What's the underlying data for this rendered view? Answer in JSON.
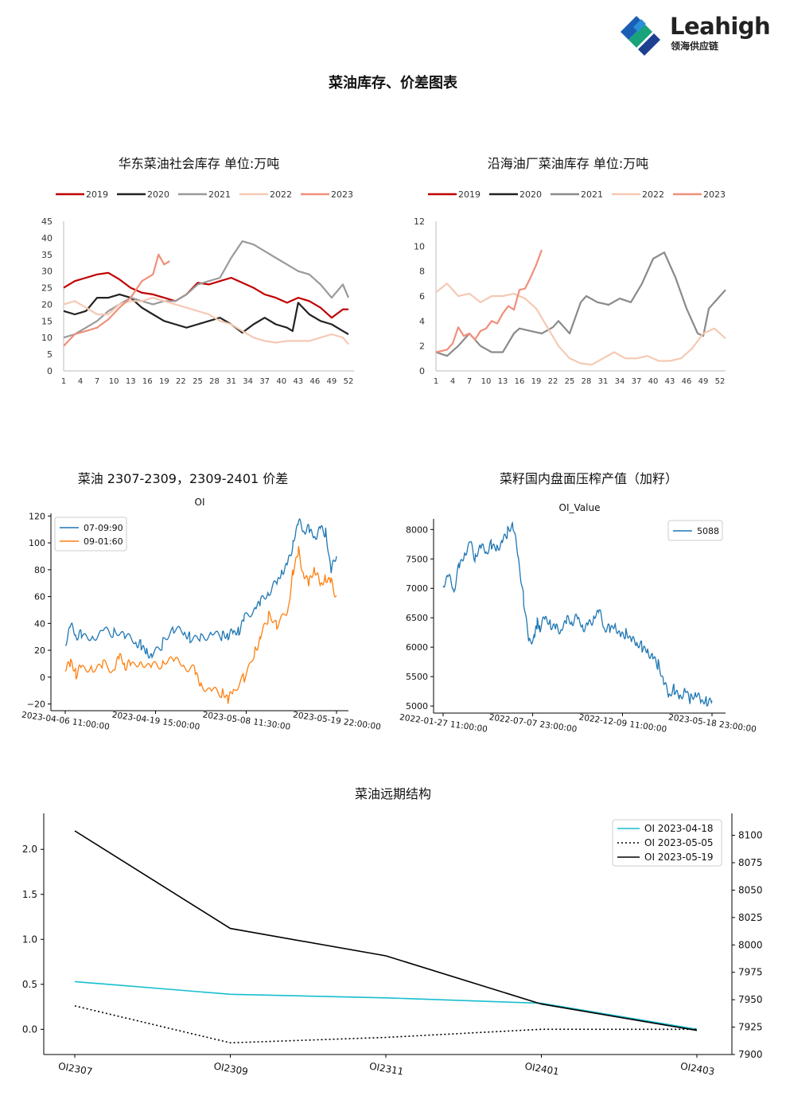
{
  "brand": {
    "name": "Leahigh",
    "sub": "领海供应链"
  },
  "page_title": "菜油库存、价差图表",
  "chart_data": [
    {
      "type": "line",
      "title": "华东菜油社会库存 单位:万吨",
      "x_ticks": [
        "1",
        "4",
        "7",
        "10",
        "13",
        "16",
        "19",
        "22",
        "25",
        "28",
        "31",
        "34",
        "37",
        "40",
        "43",
        "46",
        "49",
        "52"
      ],
      "xlim": [
        1,
        53
      ],
      "ylim": [
        0,
        45
      ],
      "y_ticks": [
        0,
        5,
        10,
        15,
        20,
        25,
        30,
        35,
        40,
        45
      ],
      "legend_position": "top",
      "series": [
        {
          "name": "2019",
          "color": "#c00000",
          "x": [
            1,
            3,
            5,
            7,
            9,
            11,
            13,
            15,
            17,
            19,
            21,
            23,
            25,
            27,
            29,
            31,
            33,
            35,
            37,
            39,
            41,
            43,
            45,
            47,
            49,
            51,
            52
          ],
          "values": [
            25,
            27,
            28,
            29,
            29.5,
            27.5,
            25,
            23.5,
            23,
            22,
            21,
            23,
            26.5,
            26,
            27,
            28,
            26.5,
            25,
            23,
            22,
            20.5,
            22,
            21,
            19,
            16,
            18.5,
            18.5
          ]
        },
        {
          "name": "2020",
          "color": "#222222",
          "x": [
            1,
            3,
            5,
            7,
            9,
            11,
            13,
            15,
            17,
            19,
            21,
            23,
            25,
            27,
            29,
            31,
            33,
            35,
            37,
            39,
            41,
            42,
            43,
            45,
            47,
            49,
            51,
            52
          ],
          "values": [
            18,
            17,
            18,
            22,
            22,
            23,
            22,
            19,
            17,
            15,
            14,
            13,
            14,
            15,
            16,
            14,
            11.5,
            14,
            16,
            14,
            13,
            12,
            20.5,
            17,
            15,
            14,
            12,
            11
          ]
        },
        {
          "name": "2021",
          "color": "#9a9a9a",
          "x": [
            1,
            3,
            5,
            7,
            9,
            11,
            13,
            15,
            17,
            19,
            21,
            23,
            25,
            27,
            29,
            31,
            33,
            35,
            37,
            39,
            41,
            43,
            45,
            47,
            49,
            51,
            52
          ],
          "values": [
            10,
            11,
            13,
            15,
            18,
            20,
            22,
            21,
            20,
            21,
            21,
            23,
            26,
            27,
            28,
            34,
            39,
            38,
            36,
            34,
            32,
            30,
            29,
            26,
            22,
            26,
            22
          ]
        },
        {
          "name": "2022",
          "color": "#f5c9b4",
          "x": [
            1,
            3,
            5,
            7,
            9,
            11,
            13,
            15,
            17,
            19,
            21,
            23,
            25,
            27,
            29,
            31,
            33,
            35,
            37,
            39,
            41,
            43,
            45,
            47,
            49,
            51,
            52
          ],
          "values": [
            20,
            21,
            19,
            17,
            17,
            20,
            21,
            21,
            22,
            21,
            20,
            19,
            18,
            17,
            15,
            14,
            12,
            10,
            9,
            8.5,
            9,
            9,
            9,
            10,
            11,
            10,
            8
          ]
        },
        {
          "name": "2023",
          "color": "#f0907a",
          "x": [
            1,
            3,
            5,
            7,
            9,
            11,
            13,
            15,
            17,
            18,
            19,
            20
          ],
          "values": [
            7.5,
            11,
            12,
            13,
            15.5,
            19,
            22,
            27,
            29,
            35,
            32,
            33
          ]
        }
      ]
    },
    {
      "type": "line",
      "title": "沿海油厂菜油库存 单位:万吨",
      "x_ticks": [
        "1",
        "4",
        "7",
        "10",
        "13",
        "16",
        "19",
        "22",
        "25",
        "28",
        "31",
        "34",
        "37",
        "40",
        "43",
        "46",
        "49",
        "52"
      ],
      "xlim": [
        1,
        53
      ],
      "ylim": [
        0,
        12
      ],
      "y_ticks": [
        0,
        2,
        4,
        6,
        8,
        10,
        12
      ],
      "legend_position": "top",
      "series": [
        {
          "name": "2019",
          "color": "#c00000",
          "x": [],
          "values": []
        },
        {
          "name": "2020",
          "color": "#222222",
          "x": [],
          "values": []
        },
        {
          "name": "2021",
          "color": "#8a8a8a",
          "x": [
            1,
            3,
            5,
            7,
            9,
            11,
            13,
            15,
            16,
            18,
            20,
            22,
            23,
            25,
            27,
            28,
            30,
            32,
            34,
            36,
            38,
            40,
            42,
            44,
            46,
            48,
            49,
            50,
            52,
            53
          ],
          "values": [
            1.5,
            1.2,
            2,
            3,
            2,
            1.5,
            1.5,
            3,
            3.4,
            3.2,
            3,
            3.5,
            4,
            3,
            5.5,
            6,
            5.5,
            5.3,
            5.8,
            5.5,
            7,
            9,
            9.5,
            7.5,
            5,
            3,
            2.8,
            5,
            6,
            6.5
          ]
        },
        {
          "name": "2022",
          "color": "#f5c9b4",
          "x": [
            1,
            3,
            5,
            7,
            9,
            11,
            13,
            15,
            17,
            19,
            21,
            23,
            25,
            27,
            29,
            31,
            33,
            35,
            37,
            39,
            41,
            43,
            45,
            47,
            49,
            51,
            53
          ],
          "values": [
            6.3,
            7,
            6,
            6.2,
            5.5,
            6,
            6,
            6.2,
            5.8,
            5,
            3.5,
            2,
            1,
            0.6,
            0.5,
            1,
            1.5,
            1,
            1,
            1.2,
            0.8,
            0.8,
            1,
            1.8,
            3,
            3.4,
            2.6
          ]
        },
        {
          "name": "2023",
          "color": "#f0907a",
          "x": [
            1,
            3,
            4,
            5,
            6,
            7,
            8,
            9,
            10,
            11,
            12,
            13,
            14,
            15,
            16,
            17,
            18,
            19,
            20
          ],
          "values": [
            1.5,
            1.7,
            2.2,
            3.5,
            2.8,
            3,
            2.5,
            3.2,
            3.4,
            4,
            3.8,
            4.6,
            5.2,
            4.9,
            6.5,
            6.6,
            7.5,
            8.5,
            9.7
          ]
        }
      ]
    },
    {
      "type": "line",
      "title": "菜油 2307-2309，2309-2401 价差",
      "subtitle": "OI",
      "x_tick_labels": [
        "2023-04-06 11:00:00",
        "2023-04-19 15:00:00",
        "2023-05-08 11:30:00",
        "2023-05-19 22:00:00"
      ],
      "x_tick_positions": [
        0,
        0.333,
        0.667,
        1.0
      ],
      "ylim": [
        -25,
        122
      ],
      "y_ticks": [
        -20,
        0,
        20,
        40,
        60,
        80,
        100,
        120
      ],
      "legend_position": "top-left",
      "series": [
        {
          "name": "07-09:90",
          "color": "#1f77b4",
          "x": [
            0,
            0.02,
            0.04,
            0.06,
            0.1,
            0.14,
            0.18,
            0.22,
            0.26,
            0.28,
            0.3,
            0.32,
            0.36,
            0.4,
            0.44,
            0.46,
            0.5,
            0.54,
            0.58,
            0.6,
            0.62,
            0.64,
            0.66,
            0.7,
            0.72,
            0.75,
            0.78,
            0.8,
            0.82,
            0.84,
            0.86,
            0.88,
            0.9,
            0.92,
            0.94,
            0.96,
            0.98,
            1.0
          ],
          "values": [
            22,
            38,
            30,
            32,
            30,
            35,
            33,
            30,
            25,
            24,
            20,
            16,
            25,
            35,
            32,
            30,
            30,
            33,
            30,
            30,
            33,
            35,
            45,
            52,
            55,
            62,
            70,
            80,
            85,
            100,
            115,
            108,
            110,
            105,
            112,
            108,
            78,
            90
          ]
        },
        {
          "name": "09-01:60",
          "color": "#ff7f0e",
          "x": [
            0,
            0.02,
            0.04,
            0.06,
            0.1,
            0.14,
            0.18,
            0.2,
            0.22,
            0.24,
            0.28,
            0.32,
            0.36,
            0.4,
            0.44,
            0.48,
            0.5,
            0.54,
            0.58,
            0.6,
            0.62,
            0.66,
            0.7,
            0.72,
            0.75,
            0.78,
            0.82,
            0.84,
            0.86,
            0.88,
            0.9,
            0.92,
            0.94,
            0.96,
            0.98,
            1.0
          ],
          "values": [
            5,
            10,
            2,
            8,
            7,
            10,
            5,
            15,
            8,
            10,
            12,
            8,
            10,
            12,
            8,
            5,
            -5,
            -10,
            -12,
            -18,
            -10,
            0,
            20,
            30,
            45,
            38,
            48,
            80,
            95,
            75,
            70,
            80,
            68,
            75,
            72,
            60
          ]
        }
      ]
    },
    {
      "type": "line",
      "title": "菜籽国内盘面压榨产值（加籽）",
      "subtitle": "OI_Value",
      "x_tick_labels": [
        "2022-01-27 11:00:00",
        "2022-07-07 23:00:00",
        "2022-12-09 11:00:00",
        "2023-05-18 23:00:00"
      ],
      "x_tick_positions": [
        0,
        0.333,
        0.667,
        1.0
      ],
      "ylim": [
        4880,
        8180
      ],
      "y_ticks": [
        5000,
        5500,
        6000,
        6500,
        7000,
        7500,
        8000
      ],
      "legend_position": "top-right",
      "series": [
        {
          "name": "5088",
          "color": "#1f77b4",
          "x": [
            0,
            0.02,
            0.04,
            0.06,
            0.08,
            0.1,
            0.12,
            0.14,
            0.16,
            0.18,
            0.2,
            0.22,
            0.24,
            0.26,
            0.28,
            0.3,
            0.32,
            0.34,
            0.35,
            0.36,
            0.38,
            0.4,
            0.42,
            0.44,
            0.46,
            0.48,
            0.5,
            0.52,
            0.54,
            0.56,
            0.58,
            0.6,
            0.62,
            0.64,
            0.66,
            0.68,
            0.7,
            0.72,
            0.74,
            0.76,
            0.78,
            0.8,
            0.82,
            0.84,
            0.86,
            0.88,
            0.9,
            0.92,
            0.94,
            0.96,
            0.98,
            1.0
          ],
          "values": [
            7000,
            7200,
            6950,
            7400,
            7600,
            7800,
            7500,
            7700,
            7600,
            7750,
            7700,
            7800,
            7950,
            8050,
            7500,
            6800,
            6100,
            6200,
            6400,
            6300,
            6500,
            6400,
            6350,
            6300,
            6450,
            6400,
            6500,
            6350,
            6400,
            6500,
            6600,
            6300,
            6300,
            6400,
            6200,
            6250,
            6100,
            6050,
            6000,
            5950,
            5850,
            5700,
            5400,
            5150,
            5300,
            5150,
            5300,
            5100,
            5200,
            5050,
            5100,
            5088
          ]
        }
      ]
    },
    {
      "type": "line",
      "title": "菜油远期结构",
      "categories": [
        "OI2307",
        "OI2309",
        "OI2311",
        "OI2401",
        "OI2403"
      ],
      "ylim_left": [
        -0.28,
        2.4
      ],
      "y_ticks_left": [
        0.0,
        0.5,
        1.0,
        1.5,
        2.0
      ],
      "ylim_right": [
        7900,
        8120
      ],
      "y_ticks_right": [
        7900,
        7925,
        7950,
        7975,
        8000,
        8025,
        8050,
        8075,
        8100
      ],
      "legend_position": "top-right",
      "series": [
        {
          "name": "OI 2023-04-18",
          "color": "#17becf",
          "style": "solid",
          "axis": "left",
          "values": [
            0.53,
            0.39,
            0.35,
            0.29,
            0.0
          ]
        },
        {
          "name": "OI 2023-05-05",
          "color": "#000000",
          "style": "dotted",
          "axis": "left",
          "values": [
            0.26,
            -0.15,
            -0.09,
            0.0,
            0.0
          ]
        },
        {
          "name": "OI 2023-05-19",
          "color": "#000000",
          "style": "solid",
          "axis": "right",
          "values": [
            8104,
            8015,
            7990,
            7946,
            7922
          ]
        }
      ]
    }
  ]
}
